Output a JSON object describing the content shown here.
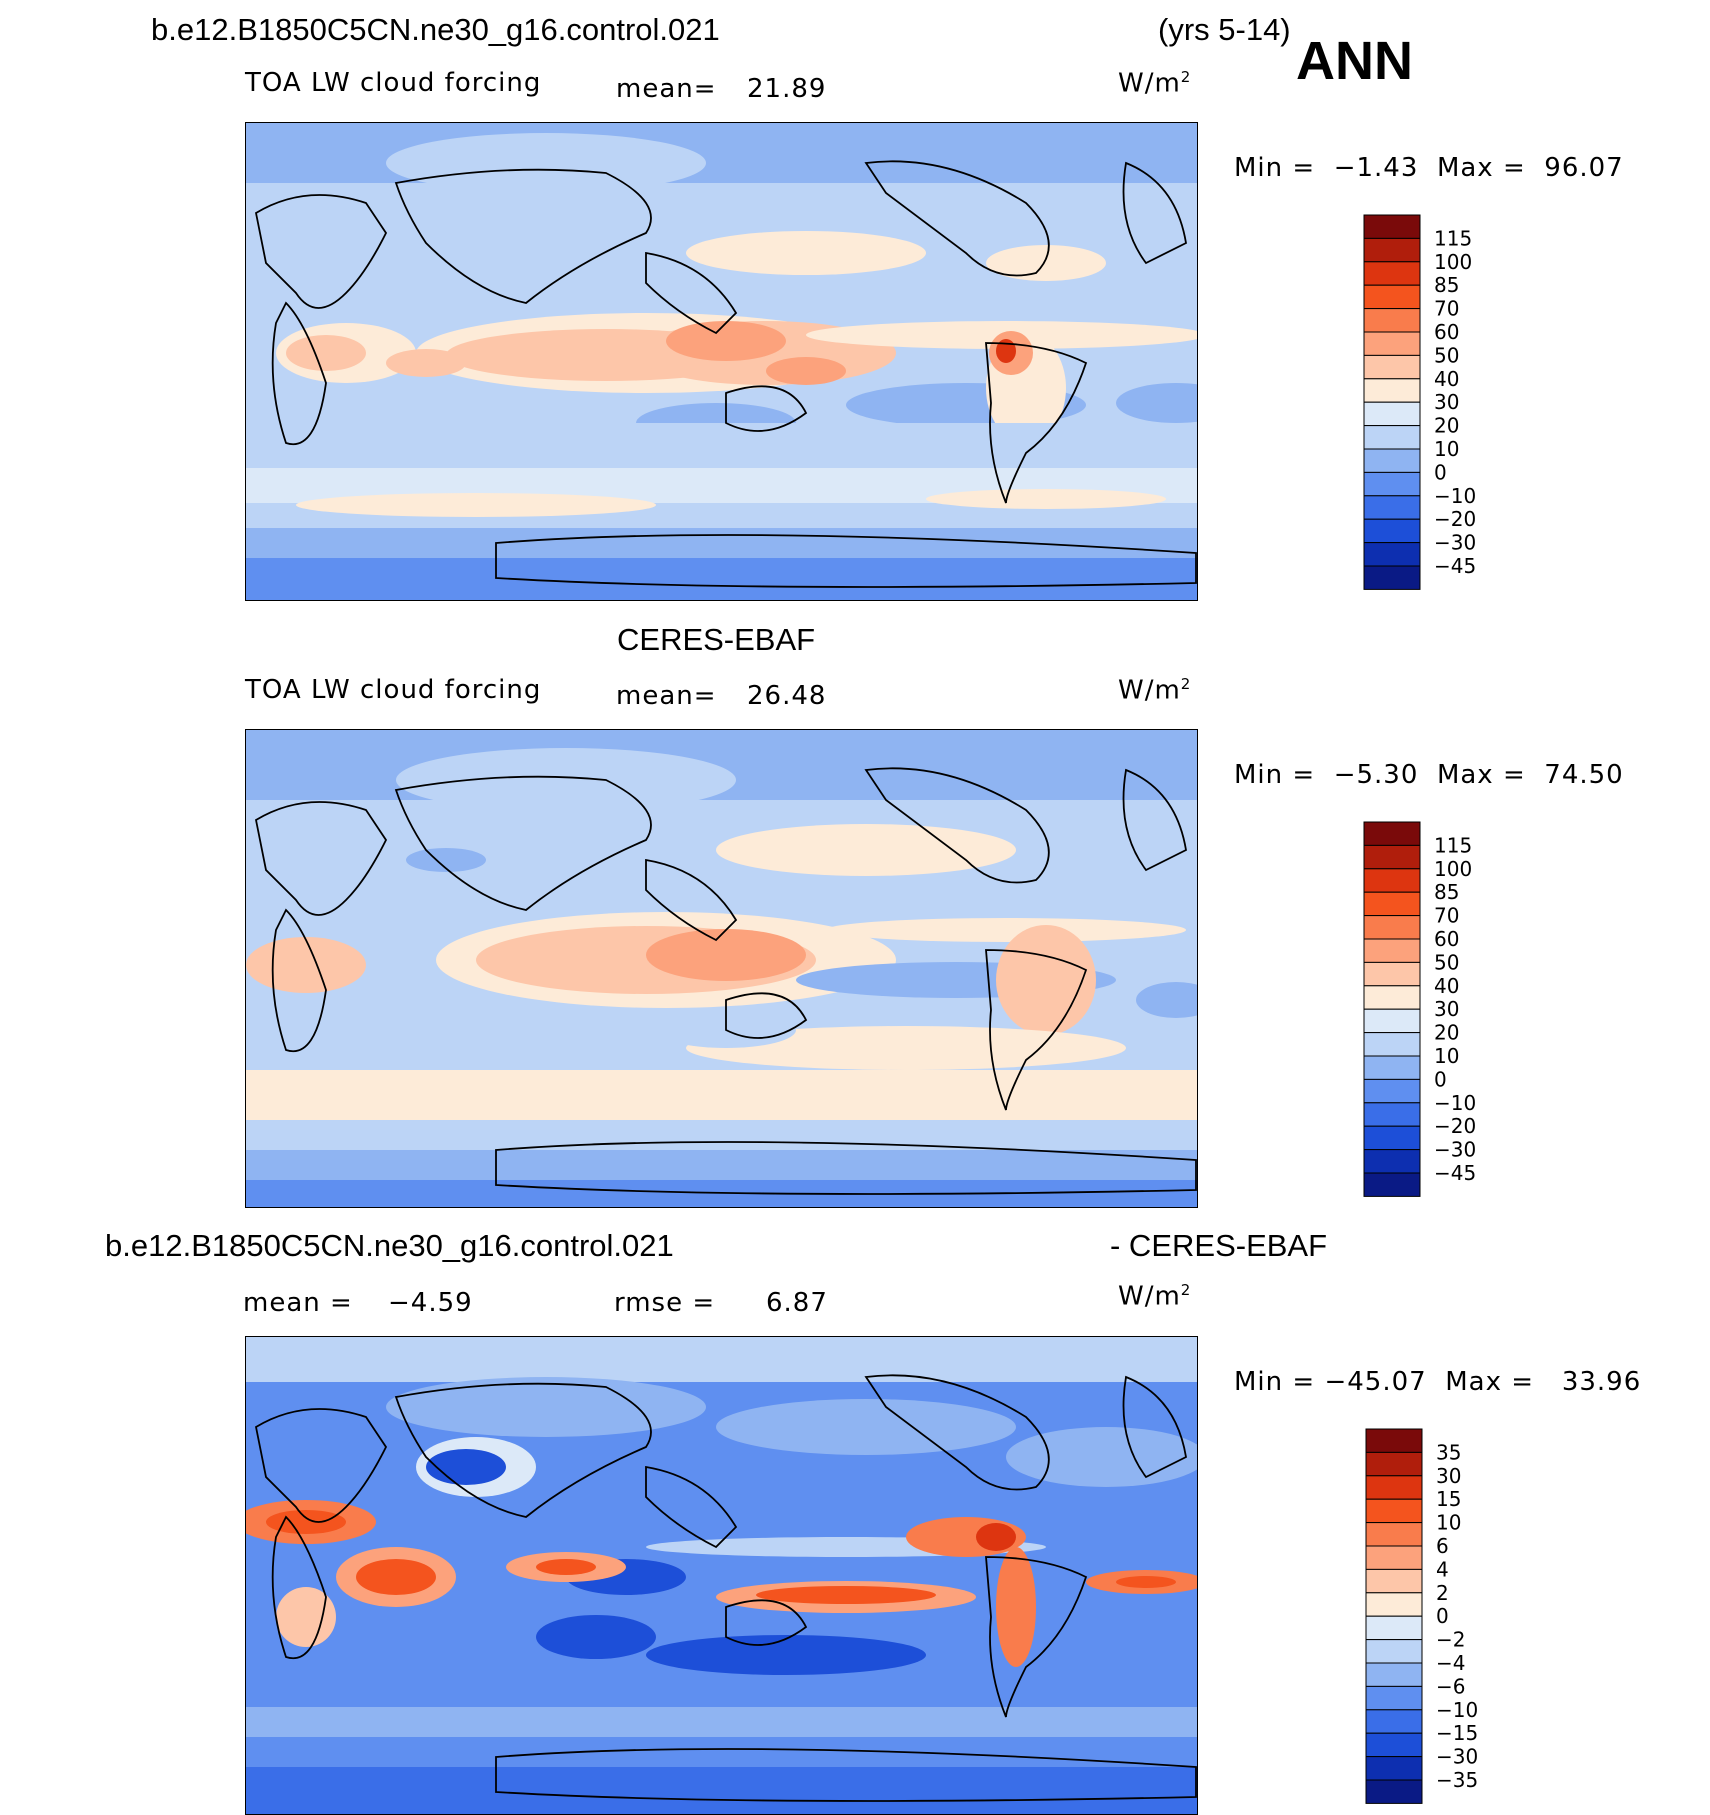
{
  "header": {
    "case_name": "b.e12.B1850C5CN.ne30_g16.control.021",
    "years": "(yrs 5-14)",
    "season": "ANN"
  },
  "panels": [
    {
      "field": "TOA LW cloud forcing",
      "mean_label": "mean=",
      "mean_value": "21.89",
      "units_base": "W/m",
      "units_exp": "2",
      "min_label": "Min =",
      "min_value": "−1.43",
      "max_label": "Max =",
      "max_value": "96.07",
      "colorbar_labels": [
        "115",
        "100",
        "85",
        "70",
        "60",
        "50",
        "40",
        "30",
        "20",
        "10",
        "0",
        "−10",
        "−20",
        "−30",
        "−45"
      ]
    },
    {
      "title": "CERES-EBAF",
      "field": "TOA LW cloud forcing",
      "mean_label": "mean=",
      "mean_value": "26.48",
      "units_base": "W/m",
      "units_exp": "2",
      "min_label": "Min =",
      "min_value": "−5.30",
      "max_label": "Max =",
      "max_value": "74.50",
      "colorbar_labels": [
        "115",
        "100",
        "85",
        "70",
        "60",
        "50",
        "40",
        "30",
        "20",
        "10",
        "0",
        "−10",
        "−20",
        "−30",
        "−45"
      ]
    },
    {
      "title_left": "b.e12.B1850C5CN.ne30_g16.control.021",
      "title_right": "- CERES-EBAF",
      "mean_label": "mean =",
      "mean_value": "−4.59",
      "rmse_label": "rmse =",
      "rmse_value": "6.87",
      "units_base": "W/m",
      "units_exp": "2",
      "min_label": "Min =",
      "min_value": "−45.07",
      "max_label": "Max =",
      "max_value": "33.96",
      "colorbar_labels": [
        "35",
        "30",
        "15",
        "10",
        "6",
        "4",
        "2",
        "0",
        "−2",
        "−4",
        "−6",
        "−10",
        "−15",
        "−30",
        "−35"
      ]
    }
  ],
  "colors": {
    "scale": [
      "#7a0a0a",
      "#b01e0c",
      "#dd3510",
      "#f4541e",
      "#f97c4c",
      "#fca27c",
      "#fdc6a9",
      "#fdebd8",
      "#dce9f8",
      "#bcd4f6",
      "#8fb4f2",
      "#5f8ff0",
      "#3a6ee8",
      "#1d4fd8",
      "#0d2fb0",
      "#0a1a85"
    ],
    "coast": "#000000"
  }
}
